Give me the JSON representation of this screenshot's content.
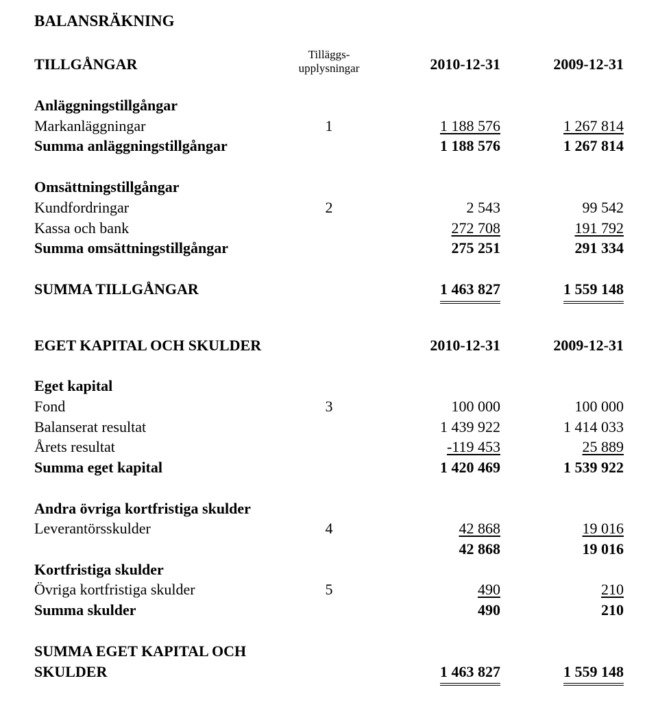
{
  "title": "BALANSRÄKNING",
  "headers": {
    "assets_label": "TILLGÅNGAR",
    "note_line1": "Tilläggs-",
    "note_line2": "upplysningar",
    "col1": "2010-12-31",
    "col2": "2009-12-31"
  },
  "sections": {
    "fixed_assets_heading": "Anläggningstillgångar",
    "land": {
      "label": "Markanläggningar",
      "note": "1",
      "v1": "1 188 576",
      "v2": "1 267 814"
    },
    "sum_fixed": {
      "label": "Summa anläggningstillgångar",
      "v1": "1 188 576",
      "v2": "1 267 814"
    },
    "current_assets_heading": "Omsättningstillgångar",
    "receivables": {
      "label": "Kundfordringar",
      "note": "2",
      "v1": "2 543",
      "v2": "99 542"
    },
    "cash": {
      "label": "Kassa och bank",
      "v1": "272 708",
      "v2": "191 792"
    },
    "sum_current": {
      "label": "Summa omsättningstillgångar",
      "v1": "275 251",
      "v2": "291 334"
    },
    "sum_assets": {
      "label": "SUMMA TILLGÅNGAR",
      "v1": "1 463 827",
      "v2": "1 559 148"
    }
  },
  "equity_section": {
    "heading": "EGET KAPITAL OCH SKULDER",
    "col1": "2010-12-31",
    "col2": "2009-12-31",
    "equity_heading": "Eget kapital",
    "fund": {
      "label": "Fond",
      "note": "3",
      "v1": "100 000",
      "v2": "100 000"
    },
    "retained": {
      "label": "Balanserat resultat",
      "v1": "1 439 922",
      "v2": "1 414 033"
    },
    "year_result": {
      "label": "Årets resultat",
      "v1": "-119 453",
      "v2": "25 889"
    },
    "sum_equity": {
      "label": "Summa eget kapital",
      "v1": "1 420 469",
      "v2": "1 539 922"
    },
    "other_short_heading": "Andra övriga kortfristiga skulder",
    "payables": {
      "label": "Leverantörsskulder",
      "note": "4",
      "v1": "42 868",
      "v2": "19 016"
    },
    "payables_sub": {
      "v1": "42 868",
      "v2": "19 016"
    },
    "short_heading": "Kortfristiga skulder",
    "other_short": {
      "label": "Övriga kortfristiga skulder",
      "note": "5",
      "v1": "490",
      "v2": "210"
    },
    "sum_liab": {
      "label": "Summa skulder",
      "v1": "490",
      "v2": "210"
    },
    "sum_all_label1": "SUMMA EGET KAPITAL OCH",
    "sum_all_label2": "SKULDER",
    "sum_all": {
      "v1": "1 463 827",
      "v2": "1 559 148"
    }
  }
}
